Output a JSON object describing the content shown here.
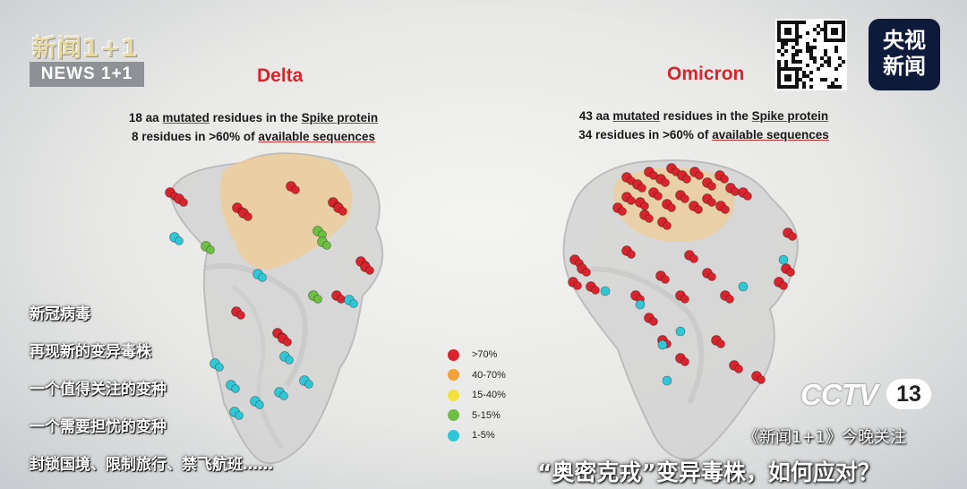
{
  "slide": {
    "delta": {
      "title": "Delta",
      "line1_pre": "18 aa ",
      "line1_u1": "mutated",
      "line1_mid": " residues in the ",
      "line1_u2": "Spike protein",
      "line2_pre": "8 residues in >60% of ",
      "line2_u": "available sequences"
    },
    "omicron": {
      "title": "Omicron",
      "line1_pre": "43 aa ",
      "line1_u1": "mutated",
      "line1_mid": " residues in the ",
      "line1_u2": "Spike protein",
      "line2_pre": "34 residues in >60% of ",
      "line2_u": "available sequences"
    },
    "legend": [
      {
        "label": ">70%",
        "color": "#d8242c"
      },
      {
        "label": "40-70%",
        "color": "#f0a33a"
      },
      {
        "label": "15-40%",
        "color": "#f3e23c"
      },
      {
        "label": "5-15%",
        "color": "#6cbf43"
      },
      {
        "label": "1-5%",
        "color": "#2fc6d6"
      }
    ]
  },
  "overlay": {
    "show_name_cn": "新闻1+1",
    "show_name_en": "NEWS 1+1",
    "station_line1": "央视",
    "station_line2": "新闻",
    "channel_logo": "CCTV",
    "channel_number": "13",
    "tonight_text": "《新闻1+1》今晚关注",
    "headline": "“奥密克戎”变异毒株，如何应对？",
    "captions": [
      "新冠病毒",
      "再现新的变异毒株",
      "一个值得关注的变种",
      "一个需要担忧的变种",
      "封锁国境、限制旅行、禁飞航班……"
    ]
  }
}
